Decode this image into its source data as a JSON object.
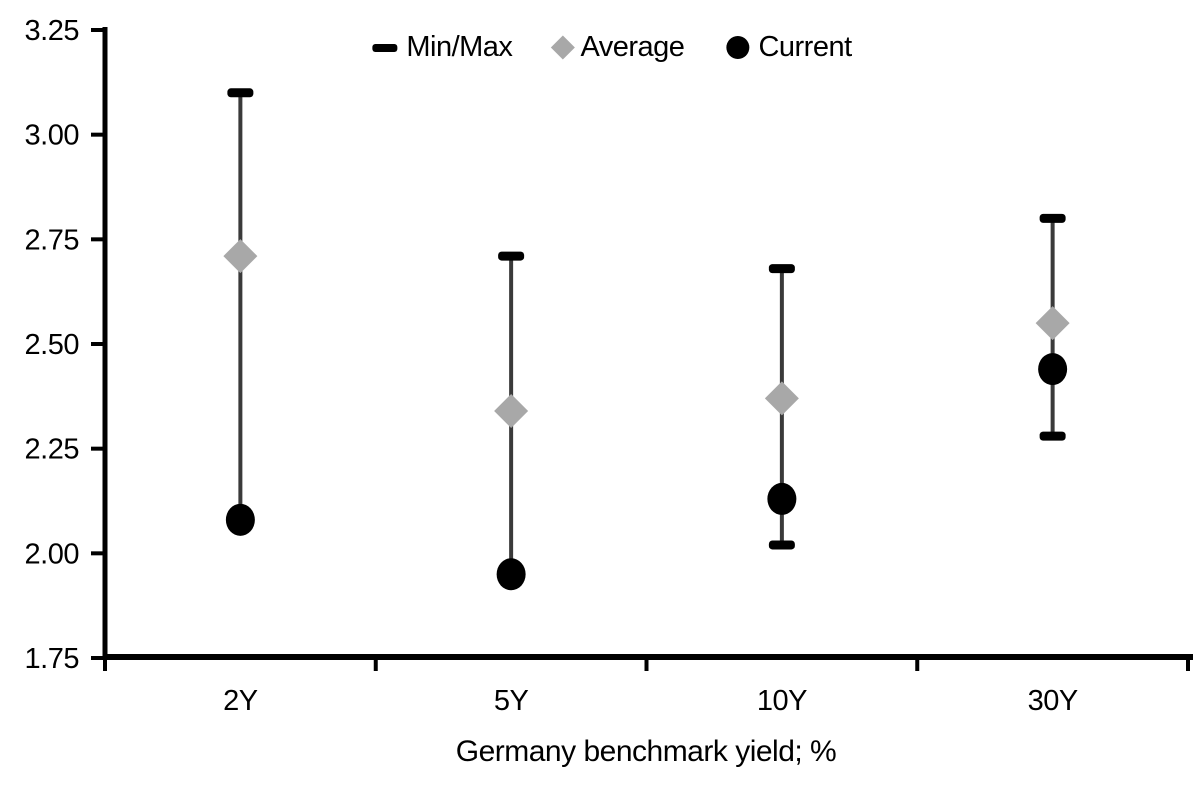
{
  "chart_data": {
    "type": "scatter",
    "subtype": "min-max-range-with-average-and-current",
    "title": "",
    "xlabel": "Germany benchmark yield; %",
    "ylabel": "",
    "categories": [
      "2Y",
      "5Y",
      "10Y",
      "30Y"
    ],
    "series": [
      {
        "name": "Min/Max",
        "marker": "dash-capped-range",
        "max": [
          3.1,
          2.71,
          2.68,
          2.8
        ],
        "min": [
          2.08,
          1.95,
          2.02,
          2.28
        ]
      },
      {
        "name": "Average",
        "marker": "diamond",
        "values": [
          2.71,
          2.34,
          2.37,
          2.55
        ]
      },
      {
        "name": "Current",
        "marker": "circle",
        "values": [
          2.08,
          1.95,
          2.13,
          2.44
        ]
      }
    ],
    "ylim": [
      1.75,
      3.25
    ],
    "ytick_step": 0.25,
    "ytick_labels": [
      "3.25",
      "3.00",
      "2.75",
      "2.50",
      "2.25",
      "2.00",
      "1.75"
    ],
    "grid": false,
    "legend_position": "top-center",
    "colors": {
      "min_max_cap": "#000000",
      "range_line": "#3a3a3a",
      "average": "#a8a8a8",
      "current": "#000000",
      "axis": "#000000",
      "text": "#000000",
      "background": "#ffffff"
    }
  }
}
